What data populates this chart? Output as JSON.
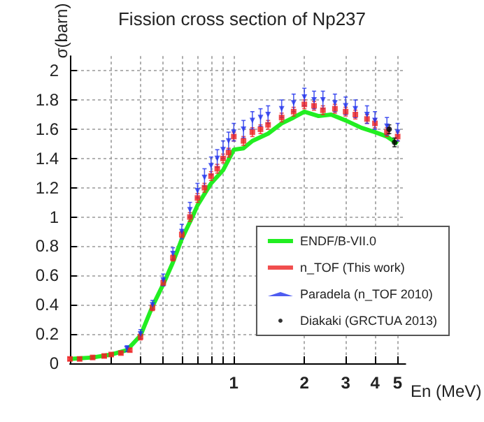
{
  "chart_data": {
    "type": "scatter",
    "title": "Fission cross section of Np237",
    "xlabel": "En (MeV)",
    "ylabel": "σ(barn)",
    "log": "x",
    "grid": true,
    "legend": "bottom right",
    "xlim": [
      0.2,
      5.4
    ],
    "xticks": [
      {
        "value": 0.2,
        "label": null
      },
      {
        "value": 0.3,
        "label": null
      },
      {
        "value": 0.4,
        "label": null
      },
      {
        "value": 0.5,
        "label": null
      },
      {
        "value": 0.6,
        "label": null
      },
      {
        "value": 0.7,
        "label": null
      },
      {
        "value": 0.8,
        "label": null
      },
      {
        "value": 0.9,
        "label": null
      },
      1,
      2,
      3,
      4,
      5
    ],
    "ylim": [
      0,
      2.1
    ],
    "yticks": [
      0,
      0.2,
      0.4,
      0.6,
      0.8,
      1,
      1.2,
      1.4,
      1.6,
      1.8,
      2
    ],
    "series": [
      {
        "name": "ENDF/B-VII.0",
        "type": "line",
        "color": "#22ee22",
        "marker": "none",
        "x": [
          0.2,
          0.25,
          0.3,
          0.35,
          0.4,
          0.45,
          0.5,
          0.55,
          0.6,
          0.67,
          0.7,
          0.8,
          0.9,
          1.0,
          1.1,
          1.2,
          1.4,
          1.6,
          1.8,
          2.0,
          2.3,
          2.6,
          3.0,
          3.5,
          4.0,
          4.5,
          5.0
        ],
        "values": [
          0.03,
          0.04,
          0.06,
          0.09,
          0.19,
          0.39,
          0.54,
          0.69,
          0.85,
          1.01,
          1.08,
          1.23,
          1.32,
          1.46,
          1.47,
          1.52,
          1.57,
          1.64,
          1.68,
          1.72,
          1.69,
          1.7,
          1.66,
          1.61,
          1.58,
          1.55,
          1.5
        ]
      },
      {
        "name": "n_TOF (This work)",
        "color": "#ee2222",
        "marker": "square",
        "x": [
          0.2,
          0.22,
          0.25,
          0.28,
          0.3,
          0.33,
          0.36,
          0.4,
          0.45,
          0.5,
          0.55,
          0.6,
          0.65,
          0.7,
          0.75,
          0.8,
          0.85,
          0.9,
          0.95,
          1.0,
          1.1,
          1.2,
          1.3,
          1.4,
          1.6,
          1.8,
          2.0,
          2.2,
          2.4,
          2.7,
          3.0,
          3.3,
          3.7,
          4.0,
          4.5,
          5.0
        ],
        "values": [
          0.03,
          0.03,
          0.04,
          0.05,
          0.06,
          0.07,
          0.09,
          0.18,
          0.38,
          0.55,
          0.72,
          0.88,
          1.0,
          1.13,
          1.2,
          1.28,
          1.33,
          1.4,
          1.44,
          1.55,
          1.52,
          1.58,
          1.6,
          1.63,
          1.68,
          1.72,
          1.77,
          1.76,
          1.73,
          1.74,
          1.72,
          1.7,
          1.67,
          1.64,
          1.58,
          1.55
        ],
        "errors": [
          0.01,
          0.01,
          0.01,
          0.01,
          0.01,
          0.01,
          0.01,
          0.02,
          0.02,
          0.02,
          0.02,
          0.02,
          0.03,
          0.03,
          0.03,
          0.03,
          0.03,
          0.03,
          0.03,
          0.03,
          0.03,
          0.03,
          0.03,
          0.03,
          0.03,
          0.03,
          0.03,
          0.03,
          0.03,
          0.03,
          0.03,
          0.03,
          0.03,
          0.03,
          0.03,
          0.03
        ]
      },
      {
        "name": "Paradela (n_TOF 2010)",
        "color": "#2233ee",
        "marker": "triangle",
        "x": [
          0.35,
          0.4,
          0.45,
          0.5,
          0.55,
          0.6,
          0.65,
          0.7,
          0.75,
          0.8,
          0.85,
          0.9,
          0.95,
          1.0,
          1.1,
          1.2,
          1.3,
          1.4,
          1.6,
          1.8,
          2.0,
          2.2,
          2.4,
          2.7,
          3.0,
          3.3,
          3.7,
          4.0,
          4.5,
          5.0
        ],
        "values": [
          0.1,
          0.2,
          0.4,
          0.57,
          0.75,
          0.9,
          1.05,
          1.18,
          1.27,
          1.35,
          1.4,
          1.46,
          1.52,
          1.58,
          1.6,
          1.66,
          1.68,
          1.7,
          1.74,
          1.78,
          1.82,
          1.8,
          1.8,
          1.78,
          1.76,
          1.74,
          1.7,
          1.66,
          1.62,
          1.58
        ],
        "errors": [
          0.02,
          0.03,
          0.03,
          0.04,
          0.04,
          0.05,
          0.05,
          0.05,
          0.06,
          0.06,
          0.06,
          0.06,
          0.06,
          0.06,
          0.06,
          0.06,
          0.06,
          0.06,
          0.06,
          0.06,
          0.06,
          0.06,
          0.06,
          0.06,
          0.06,
          0.06,
          0.06,
          0.06,
          0.06,
          0.06
        ]
      },
      {
        "name": "Diakaki (GRCTUA 2013)",
        "color": "#000000",
        "marker": "circle",
        "x": [
          4.6,
          4.85
        ],
        "values": [
          1.6,
          1.51
        ],
        "errors": [
          0.03,
          0.03
        ]
      }
    ]
  }
}
